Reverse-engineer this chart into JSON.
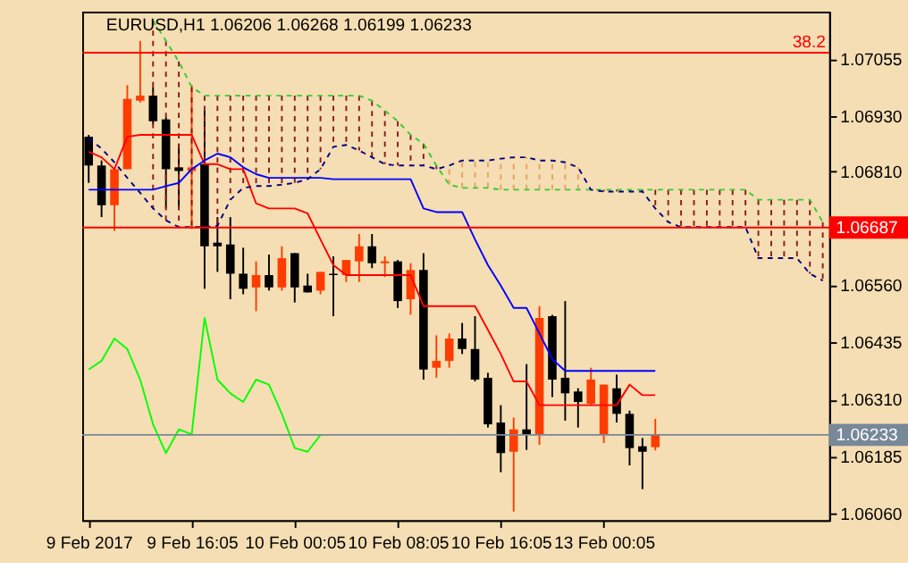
{
  "chart_data": {
    "type": "candlestick",
    "title": "EURUSD,H1  1.06206 1.06268 1.06199 1.06233",
    "categories": [
      "9 Feb 2017",
      null,
      null,
      null,
      null,
      null,
      null,
      null,
      "9 Feb 16:05",
      null,
      null,
      null,
      null,
      null,
      null,
      null,
      "10 Feb 00:05",
      null,
      null,
      null,
      null,
      null,
      null,
      null,
      "10 Feb 08:05",
      null,
      null,
      null,
      null,
      null,
      null,
      null,
      "10 Feb 16:05",
      null,
      null,
      null,
      null,
      null,
      null,
      null,
      "13 Feb 00:05",
      null,
      null,
      null,
      null,
      null,
      null,
      null,
      null,
      null,
      null,
      null,
      null,
      null,
      null,
      null,
      null,
      null
    ],
    "ohlc": [
      [
        1.06886,
        1.0689,
        1.06785,
        1.06823
      ],
      [
        1.06823,
        1.06834,
        1.0671,
        1.06736
      ],
      [
        1.06736,
        1.06815,
        1.0668,
        1.06815
      ],
      [
        1.06815,
        1.06999,
        1.06815,
        1.06969
      ],
      [
        1.06965,
        1.07096,
        1.06961,
        1.06976
      ],
      [
        1.06976,
        1.06995,
        1.06913,
        1.0692
      ],
      [
        1.06924,
        1.06928,
        1.06729,
        1.06815
      ],
      [
        1.06819,
        1.06871,
        1.06729,
        1.06811
      ],
      [
        1.06811,
        1.06999,
        1.06684,
        1.06819
      ],
      [
        1.06826,
        1.06943,
        1.06553,
        1.06646
      ],
      [
        1.06654,
        1.0671,
        1.0659,
        1.06646
      ],
      [
        1.0665,
        1.0671,
        1.0653,
        1.06586
      ],
      [
        1.06586,
        1.06643,
        1.06541,
        1.06553
      ],
      [
        1.06556,
        1.06613,
        1.06504,
        1.06583
      ],
      [
        1.06583,
        1.06628,
        1.06549,
        1.06556
      ],
      [
        1.06556,
        1.06646,
        1.06549,
        1.0662
      ],
      [
        1.06631,
        1.06631,
        1.06523,
        1.06556
      ],
      [
        1.0656,
        1.06586,
        1.06545,
        1.06545
      ],
      [
        1.06549,
        1.0659,
        1.06541,
        1.0659
      ],
      [
        1.06586,
        1.06624,
        1.06493,
        1.06583
      ],
      [
        1.06583,
        1.06616,
        1.06568,
        1.06616
      ],
      [
        1.06613,
        1.06673,
        1.06568,
        1.06646
      ],
      [
        1.06646,
        1.06673,
        1.06598,
        1.06609
      ],
      [
        1.06609,
        1.06624,
        1.06579,
        1.06613
      ],
      [
        1.06613,
        1.06616,
        1.06511,
        1.06526
      ],
      [
        1.0653,
        1.06609,
        1.06496,
        1.06594
      ],
      [
        1.06594,
        1.06631,
        1.06354,
        1.06376
      ],
      [
        1.0638,
        1.06451,
        1.06358,
        1.06395
      ],
      [
        1.06395,
        1.06455,
        1.0638,
        1.06444
      ],
      [
        1.06444,
        1.06478,
        1.0641,
        1.06421
      ],
      [
        1.06421,
        1.06493,
        1.0635,
        1.06354
      ],
      [
        1.06358,
        1.06369,
        1.06249,
        1.06256
      ],
      [
        1.0626,
        1.06298,
        1.06151,
        1.06193
      ],
      [
        1.06196,
        1.06271,
        1.06065,
        1.06245
      ],
      [
        1.06245,
        1.06388,
        1.062,
        1.06234
      ],
      [
        1.06234,
        1.06515,
        1.06211,
        1.06489
      ],
      [
        1.06493,
        1.06496,
        1.06316,
        1.06354
      ],
      [
        1.06358,
        1.06526,
        1.06264,
        1.06324
      ],
      [
        1.06328,
        1.06335,
        1.06249,
        1.06305
      ],
      [
        1.06301,
        1.0638,
        1.06298,
        1.06354
      ],
      [
        1.06234,
        1.06343,
        1.06215,
        1.06343
      ],
      [
        1.06335,
        1.06365,
        1.0626,
        1.06279
      ],
      [
        1.06279,
        1.06286,
        1.06166,
        1.06204
      ],
      [
        1.06208,
        1.06226,
        1.06114,
        1.06196
      ],
      [
        1.06206,
        1.06268,
        1.06199,
        1.06233
      ],
      null,
      null,
      null,
      null,
      null,
      null,
      null,
      null,
      null,
      null,
      null,
      null,
      null
    ],
    "colors": [
      "#000000",
      "#000000",
      "#ff3c00",
      "#ff3c00",
      "#ff3c00",
      "#000000",
      "#000000",
      "#000000",
      "#ff3c00",
      "#000000",
      "#000000",
      "#000000",
      "#000000",
      "#ff3c00",
      "#000000",
      "#ff3c00",
      "#000000",
      "#000000",
      "#ff3c00",
      "#000000",
      "#ff3c00",
      "#ff3c00",
      "#000000",
      "#ff3c00",
      "#000000",
      "#ff3c00",
      "#000000",
      "#ff3c00",
      "#ff3c00",
      "#000000",
      "#000000",
      "#000000",
      "#000000",
      "#ff3c00",
      "#000000",
      "#ff3c00",
      "#000000",
      "#000000",
      "#000000",
      "#ff3c00",
      "#ff3c00",
      "#000000",
      "#000000",
      "#000000",
      "#ff3c00",
      null,
      null,
      null,
      null,
      null,
      null,
      null,
      null,
      null,
      null,
      null,
      null,
      null
    ],
    "series": [
      {
        "type": "line",
        "color": "#ff0000",
        "line_style": "solid",
        "values": [
          1.06853,
          1.06841,
          1.06815,
          1.06886,
          1.0689,
          1.0689,
          1.0689,
          1.0689,
          1.0689,
          1.06826,
          1.06826,
          1.06815,
          1.06815,
          1.0674,
          1.06729,
          1.06729,
          1.06729,
          1.06718,
          1.06661,
          1.06605,
          1.06583,
          1.06583,
          1.06583,
          1.06583,
          1.06583,
          1.06583,
          1.06515,
          1.06515,
          1.06515,
          1.06515,
          1.06515,
          1.06463,
          1.0641,
          1.0635,
          1.0635,
          1.06298,
          1.06298,
          1.06298,
          1.06298,
          1.06298,
          1.06298,
          1.06298,
          1.06343,
          1.0632,
          1.0632,
          null,
          null,
          null,
          null,
          null,
          null,
          null,
          null,
          null,
          null,
          null,
          null,
          null
        ]
      },
      {
        "type": "line",
        "color": "#0000ff",
        "line_style": "solid",
        "values": [
          1.0677,
          1.0677,
          1.0677,
          1.0677,
          1.0677,
          1.0677,
          1.06778,
          1.06785,
          1.06815,
          1.06834,
          1.06849,
          1.06841,
          1.06819,
          1.06804,
          1.06796,
          1.06796,
          1.06796,
          1.06796,
          1.06796,
          1.06793,
          1.06793,
          1.06793,
          1.06793,
          1.06793,
          1.06793,
          1.06793,
          1.06729,
          1.06721,
          1.06721,
          1.06721,
          1.06661,
          1.06605,
          1.0656,
          1.06511,
          1.06511,
          1.06455,
          1.06399,
          1.06373,
          1.06373,
          1.06373,
          1.06373,
          1.06373,
          1.06373,
          1.06373,
          1.06373,
          null,
          null,
          null,
          null,
          null,
          null,
          null,
          null,
          null,
          null,
          null,
          null,
          null
        ]
      },
      {
        "type": "line",
        "color": "#00ff00",
        "line_style": "solid",
        "values": [
          1.06376,
          1.06395,
          1.06444,
          1.06421,
          1.06354,
          1.06256,
          1.06193,
          1.06245,
          1.06234,
          1.06489,
          1.06354,
          1.06324,
          1.06305,
          1.06354,
          1.06343,
          1.06279,
          1.06204,
          1.06196,
          1.06233,
          null,
          null,
          null,
          null,
          null,
          null,
          null,
          null,
          null,
          null,
          null,
          null,
          null,
          null,
          null,
          null,
          null,
          null,
          null,
          null,
          null,
          null,
          null,
          null,
          null,
          null,
          null,
          null,
          null,
          null,
          null,
          null,
          null,
          null,
          null,
          null,
          null,
          null,
          null
        ]
      },
      {
        "type": "line",
        "color": "#32cd32",
        "line_style": "dashed",
        "values": [
          null,
          null,
          null,
          null,
          null,
          1.07141,
          1.07096,
          1.07051,
          1.06995,
          1.06976,
          1.06976,
          1.06976,
          1.06976,
          1.06976,
          1.06976,
          1.06976,
          1.06976,
          1.06976,
          1.06976,
          1.06976,
          1.06976,
          1.06976,
          1.06965,
          1.06943,
          1.0692,
          1.0689,
          1.06871,
          1.06823,
          1.06781,
          1.06774,
          1.06774,
          1.06774,
          1.0677,
          1.0677,
          1.0677,
          1.0677,
          1.0677,
          1.0677,
          1.0677,
          1.0677,
          1.0677,
          1.0677,
          1.0677,
          1.0677,
          1.0677,
          1.0677,
          1.0677,
          1.0677,
          1.0677,
          1.0677,
          1.0677,
          1.0677,
          1.06748,
          1.06748,
          1.06748,
          1.06748,
          1.06748,
          1.06699
        ]
      },
      {
        "type": "line",
        "color": "#000080",
        "line_style": "dashed",
        "values": [
          1.06883,
          1.0686,
          1.0683,
          1.06796,
          1.06763,
          1.06729,
          1.06703,
          1.06688,
          1.06688,
          1.06688,
          1.06691,
          1.06748,
          1.06774,
          1.06778,
          1.06778,
          1.06781,
          1.06785,
          1.06793,
          1.06815,
          1.06864,
          1.06868,
          1.06856,
          1.06841,
          1.06826,
          1.06823,
          1.06823,
          1.06823,
          1.06815,
          1.06823,
          1.06834,
          1.06834,
          1.06834,
          1.06838,
          1.06841,
          1.06841,
          1.06834,
          1.06834,
          1.0683,
          1.06819,
          1.0677,
          1.06766,
          1.06766,
          1.06766,
          1.06766,
          1.06729,
          1.06699,
          1.06688,
          1.06688,
          1.06688,
          1.06688,
          1.06688,
          1.06688,
          1.0662,
          1.0662,
          1.0662,
          1.0662,
          1.06586,
          1.06571
        ]
      }
    ],
    "ylim": [
      1.06046,
      1.0716
    ],
    "yticks": [
      1.07055,
      {
        "value": 1.0693,
        "label": "1.06930"
      },
      {
        "value": 1.0681,
        "label": "1.06810"
      },
      {
        "value": 1.0656,
        "label": "1.06560"
      },
      1.06435,
      {
        "value": 1.0631,
        "label": "1.06310"
      },
      1.06185,
      {
        "value": 1.0606,
        "label": "1.06060"
      }
    ],
    "ref_lines": [
      {
        "axis": "y",
        "value": 1.0707,
        "color": "#ff0000"
      },
      {
        "axis": "y",
        "value": 1.06687,
        "label": "1.06687",
        "color": "#ff0000"
      },
      {
        "axis": "y",
        "value": 1.06233,
        "label": "1.06233",
        "color": "#778899"
      }
    ],
    "annotations": [
      {
        "text": "38.2",
        "y": 1.0707
      }
    ],
    "grid": false
  }
}
